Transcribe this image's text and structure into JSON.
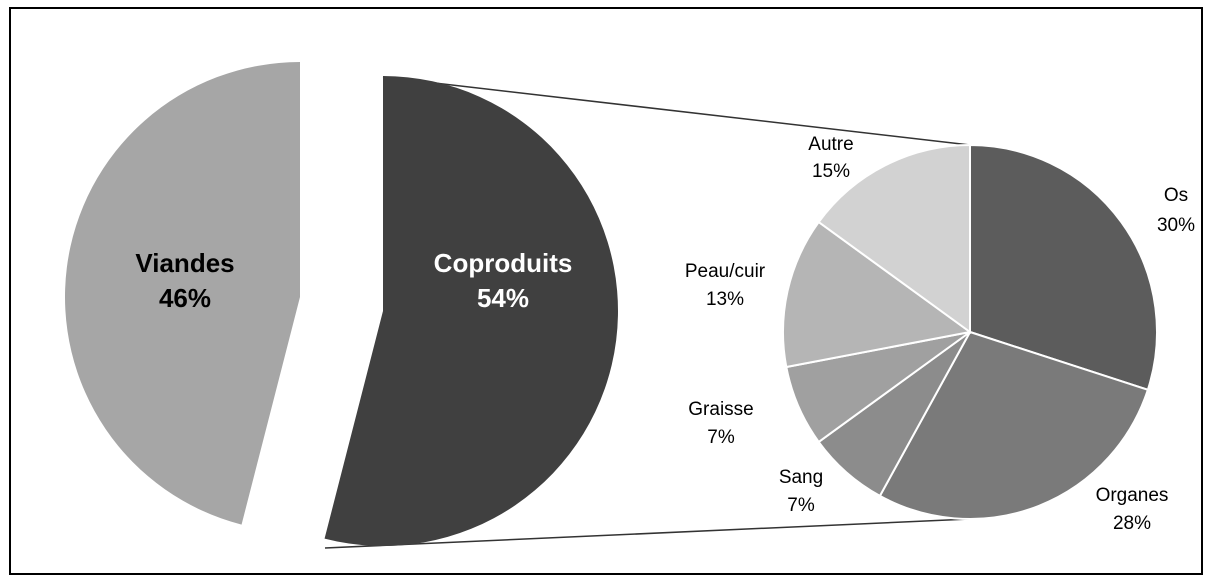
{
  "chart_data": [
    {
      "type": "pie",
      "categories": [
        "Viandes",
        "Coproduits"
      ],
      "values": [
        46,
        54
      ],
      "value_labels": [
        "46%",
        "54%"
      ],
      "colors": [
        "#a6a6a6",
        "#404040"
      ]
    },
    {
      "type": "pie",
      "categories": [
        "Os",
        "Organes",
        "Sang",
        "Graisse",
        "Peau/cuir",
        "Autre"
      ],
      "values": [
        30,
        28,
        7,
        7,
        13,
        15
      ],
      "value_labels": [
        "30%",
        "28%",
        "7%",
        "7%",
        "13%",
        "15%"
      ],
      "colors": [
        "#5c5c5c",
        "#7a7a7a",
        "#8c8c8c",
        "#a0a0a0",
        "#b5b5b5",
        "#d2d2d2"
      ]
    }
  ]
}
